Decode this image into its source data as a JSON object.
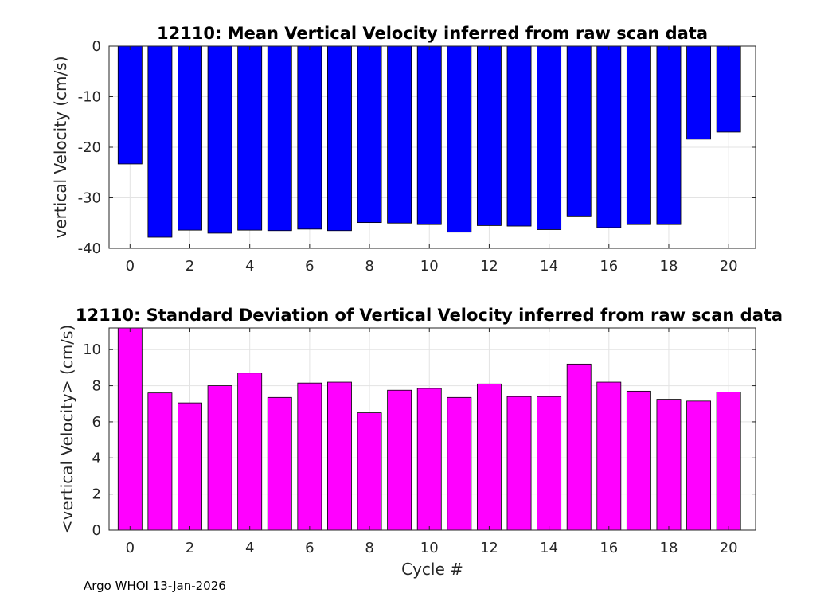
{
  "chart_data": [
    {
      "type": "bar",
      "title": "12110: Mean Vertical Velocity inferred from raw scan data",
      "xlabel": "",
      "ylabel": "vertical Velocity (cm/s)",
      "x": [
        0,
        1,
        2,
        3,
        4,
        5,
        6,
        7,
        8,
        9,
        10,
        11,
        12,
        13,
        14,
        15,
        16,
        17,
        18,
        19,
        20
      ],
      "values": [
        -23.3,
        -37.8,
        -36.4,
        -37.0,
        -36.4,
        -36.5,
        -36.2,
        -36.5,
        -34.9,
        -35.0,
        -35.3,
        -36.8,
        -35.5,
        -35.6,
        -36.3,
        -33.6,
        -35.9,
        -35.3,
        -35.3,
        -18.4,
        -17.0
      ],
      "xlim": [
        -0.7,
        20.9
      ],
      "ylim": [
        -40,
        0
      ],
      "xticks": [
        0,
        2,
        4,
        6,
        8,
        10,
        12,
        14,
        16,
        18,
        20
      ],
      "yticks": [
        0,
        -10,
        -20,
        -30,
        -40
      ],
      "bar_color": "#0000ff",
      "grid": true
    },
    {
      "type": "bar",
      "title": "12110: Standard Deviation of Vertical Velocity inferred from raw scan data",
      "xlabel": "Cycle #",
      "ylabel": "<vertical Velocity> (cm/s)",
      "x": [
        0,
        1,
        2,
        3,
        4,
        5,
        6,
        7,
        8,
        9,
        10,
        11,
        12,
        13,
        14,
        15,
        16,
        17,
        18,
        19,
        20
      ],
      "values": [
        11.2,
        7.6,
        7.05,
        8.0,
        8.7,
        7.35,
        8.15,
        8.2,
        6.5,
        7.75,
        7.85,
        7.35,
        8.1,
        7.4,
        7.4,
        9.2,
        8.2,
        7.7,
        7.25,
        7.15,
        7.65
      ],
      "xlim": [
        -0.7,
        20.9
      ],
      "ylim": [
        0,
        11.2
      ],
      "xticks": [
        0,
        2,
        4,
        6,
        8,
        10,
        12,
        14,
        16,
        18,
        20
      ],
      "yticks": [
        0,
        2,
        4,
        6,
        8,
        10
      ],
      "bar_color": "#ff00ff",
      "grid": true
    }
  ],
  "footer": "Argo WHOI 13-Jan-2026"
}
